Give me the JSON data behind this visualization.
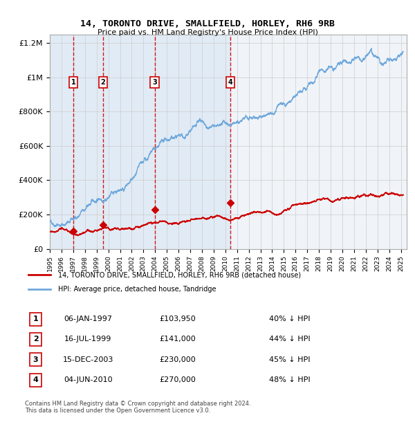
{
  "title": "14, TORONTO DRIVE, SMALLFIELD, HORLEY, RH6 9RB",
  "subtitle": "Price paid vs. HM Land Registry's House Price Index (HPI)",
  "legend_line1": "14, TORONTO DRIVE, SMALLFIELD, HORLEY, RH6 9RB (detached house)",
  "legend_line2": "HPI: Average price, detached house, Tandridge",
  "footnote1": "Contains HM Land Registry data © Crown copyright and database right 2024.",
  "footnote2": "This data is licensed under the Open Government Licence v3.0.",
  "sale_points": [
    {
      "label": "1",
      "date": "1997-01-06",
      "price": 103950,
      "hpi_pct": 40,
      "x": 1997.02
    },
    {
      "label": "2",
      "date": "1999-07-16",
      "price": 141000,
      "hpi_pct": 44,
      "x": 1999.54
    },
    {
      "label": "3",
      "date": "2003-12-15",
      "price": 230000,
      "hpi_pct": 45,
      "x": 2003.96
    },
    {
      "label": "4",
      "date": "2010-06-04",
      "price": 270000,
      "hpi_pct": 48,
      "x": 2010.42
    }
  ],
  "table_rows": [
    {
      "num": "1",
      "date": "06-JAN-1997",
      "price": "£103,950",
      "note": "40% ↓ HPI"
    },
    {
      "num": "2",
      "date": "16-JUL-1999",
      "price": "£141,000",
      "note": "44% ↓ HPI"
    },
    {
      "num": "3",
      "date": "15-DEC-2003",
      "price": "£230,000",
      "note": "45% ↓ HPI"
    },
    {
      "num": "4",
      "date": "04-JUN-2010",
      "price": "£270,000",
      "note": "48% ↓ HPI"
    }
  ],
  "hpi_color": "#6fa8dc",
  "price_color": "#cc0000",
  "vline_color": "#cc0000",
  "shade_color": "#dce8f5",
  "background_color": "#f0f4f8",
  "grid_color": "#cccccc",
  "ylim": [
    0,
    1250000
  ],
  "xlim_start": 1995.0,
  "xlim_end": 2025.5,
  "yticks": [
    0,
    200000,
    400000,
    600000,
    800000,
    1000000,
    1200000
  ],
  "ytick_labels": [
    "£0",
    "£200K",
    "£400K",
    "£600K",
    "£800K",
    "£1M",
    "£1.2M"
  ]
}
